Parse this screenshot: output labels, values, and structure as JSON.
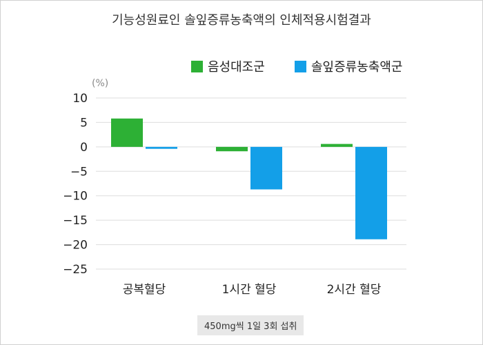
{
  "chart_data": {
    "type": "bar",
    "title": "기능성원료인 솔잎증류농축액의 인체적용시험결과",
    "ylabel": "(%)",
    "xlabel": "",
    "categories": [
      "공복혈당",
      "1시간 혈당",
      "2시간 혈당"
    ],
    "series": [
      {
        "name": "음성대조군",
        "color": "#2db035",
        "values": [
          5.8,
          -0.9,
          0.6
        ]
      },
      {
        "name": "솔잎증류농축액군",
        "color": "#139fe8",
        "values": [
          -0.4,
          -8.7,
          -18.9
        ]
      }
    ],
    "ylim": [
      -25,
      10
    ],
    "yticks": [
      10,
      5,
      0,
      -5,
      -10,
      -15,
      -20,
      -25
    ],
    "ytick_labels": [
      "10",
      "5",
      "0",
      "−5",
      "−10",
      "−15",
      "−20",
      "−25"
    ],
    "grid": true,
    "legend_position": "top-right"
  },
  "footnote": "450mg씩 1일 3회 섭취"
}
